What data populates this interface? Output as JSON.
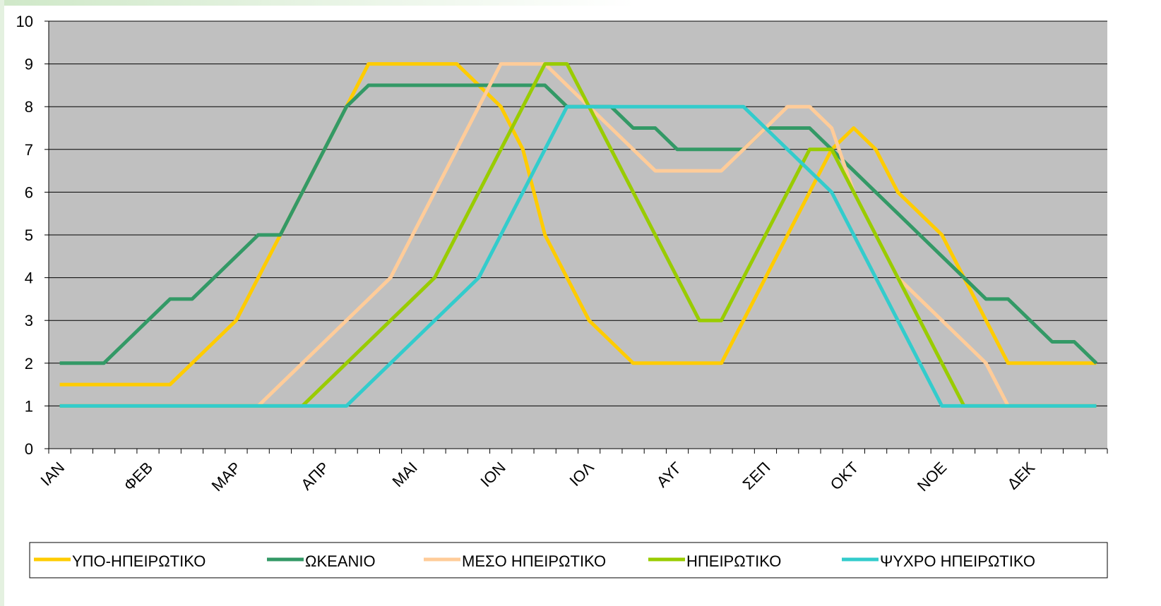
{
  "chart_data": {
    "type": "line",
    "categories": [
      "ΙΑΝ",
      null,
      null,
      null,
      "ΦΕΒ",
      null,
      null,
      null,
      "ΜΑΡ",
      null,
      null,
      null,
      "ΑΠΡ",
      null,
      null,
      null,
      "ΜΑΙ",
      null,
      null,
      null,
      "ΙΟΝ",
      null,
      null,
      null,
      "ΙΟΛ",
      null,
      null,
      null,
      "ΑΥΓ",
      null,
      null,
      null,
      "ΣΕΠ",
      null,
      null,
      null,
      "ΟΚΤ",
      null,
      null,
      null,
      "ΝΟΕ",
      null,
      null,
      null,
      "ΔΕΚ",
      null,
      null,
      null
    ],
    "ylim": [
      0,
      10
    ],
    "yticks": [
      0,
      1,
      2,
      3,
      4,
      5,
      6,
      7,
      8,
      9,
      10
    ],
    "grid": true,
    "legend": "bottom",
    "series": [
      {
        "name": "ΥΠΟ-ΗΠΕΙΡΩΤΙΚΟ",
        "color": "#ffcc00",
        "values": [
          1.5,
          1.5,
          1.5,
          1.5,
          1.5,
          1.5,
          2,
          2.5,
          3,
          4,
          5,
          6,
          7,
          8,
          9,
          9,
          9,
          9,
          9,
          8.5,
          8,
          7,
          5,
          4,
          3,
          2.5,
          2,
          2,
          2,
          2,
          2,
          3,
          4,
          5,
          6,
          7,
          7.5,
          7,
          6,
          5.5,
          5,
          4,
          3,
          2,
          2,
          2,
          2,
          2
        ]
      },
      {
        "name": "ΩΚΕΑΝΙΟ",
        "color": "#339966",
        "values": [
          2,
          2,
          2,
          2.5,
          3,
          3.5,
          3.5,
          4,
          4.5,
          5,
          5,
          6,
          7,
          8,
          8.5,
          8.5,
          8.5,
          8.5,
          8.5,
          8.5,
          8.5,
          8.5,
          8.5,
          8,
          8,
          8,
          7.5,
          7.5,
          7,
          7,
          7,
          7,
          7.5,
          7.5,
          7.5,
          7,
          6.5,
          6,
          5.5,
          5,
          4.5,
          4,
          3.5,
          3.5,
          3,
          2.5,
          2.5,
          2
        ]
      },
      {
        "name": "ΜΕΣΟ ΗΠΕΙΡΩΤΙΚΟ",
        "color": "#ffcc99",
        "values": [
          1,
          1,
          1,
          1,
          1,
          1,
          1,
          1,
          1,
          1,
          1.5,
          2,
          2.5,
          3,
          3.5,
          4,
          5,
          6,
          7,
          8,
          9,
          9,
          9,
          8.5,
          8,
          7.5,
          7,
          6.5,
          6.5,
          6.5,
          6.5,
          7,
          7.5,
          8,
          8,
          7.5,
          6,
          5,
          4,
          3.5,
          3,
          2.5,
          2,
          1,
          1,
          1,
          1,
          1
        ]
      },
      {
        "name": "ΗΠΕΙΡΩΤΙΚΟ",
        "color": "#99cc00",
        "values": [
          1,
          1,
          1,
          1,
          1,
          1,
          1,
          1,
          1,
          1,
          1,
          1,
          1.5,
          2,
          2.5,
          3,
          3.5,
          4,
          5,
          6,
          7,
          8,
          9,
          9,
          8,
          7,
          6,
          5,
          4,
          3,
          3,
          4,
          5,
          6,
          7,
          7,
          6,
          5,
          4,
          3,
          2,
          1,
          1,
          1,
          1,
          1,
          1,
          1
        ]
      },
      {
        "name": "ΨΥΧΡΟ ΗΠΕΙΡΩΤΙΚΟ",
        "color": "#33cccc",
        "values": [
          1,
          1,
          1,
          1,
          1,
          1,
          1,
          1,
          1,
          1,
          1,
          1,
          1,
          1,
          1.5,
          2,
          2.5,
          3,
          3.5,
          4,
          5,
          6,
          7,
          8,
          8,
          8,
          8,
          8,
          8,
          8,
          8,
          8,
          7.5,
          7,
          6.5,
          6,
          5,
          4,
          3,
          2,
          1,
          1,
          1,
          1,
          1,
          1,
          1,
          1
        ]
      }
    ]
  }
}
